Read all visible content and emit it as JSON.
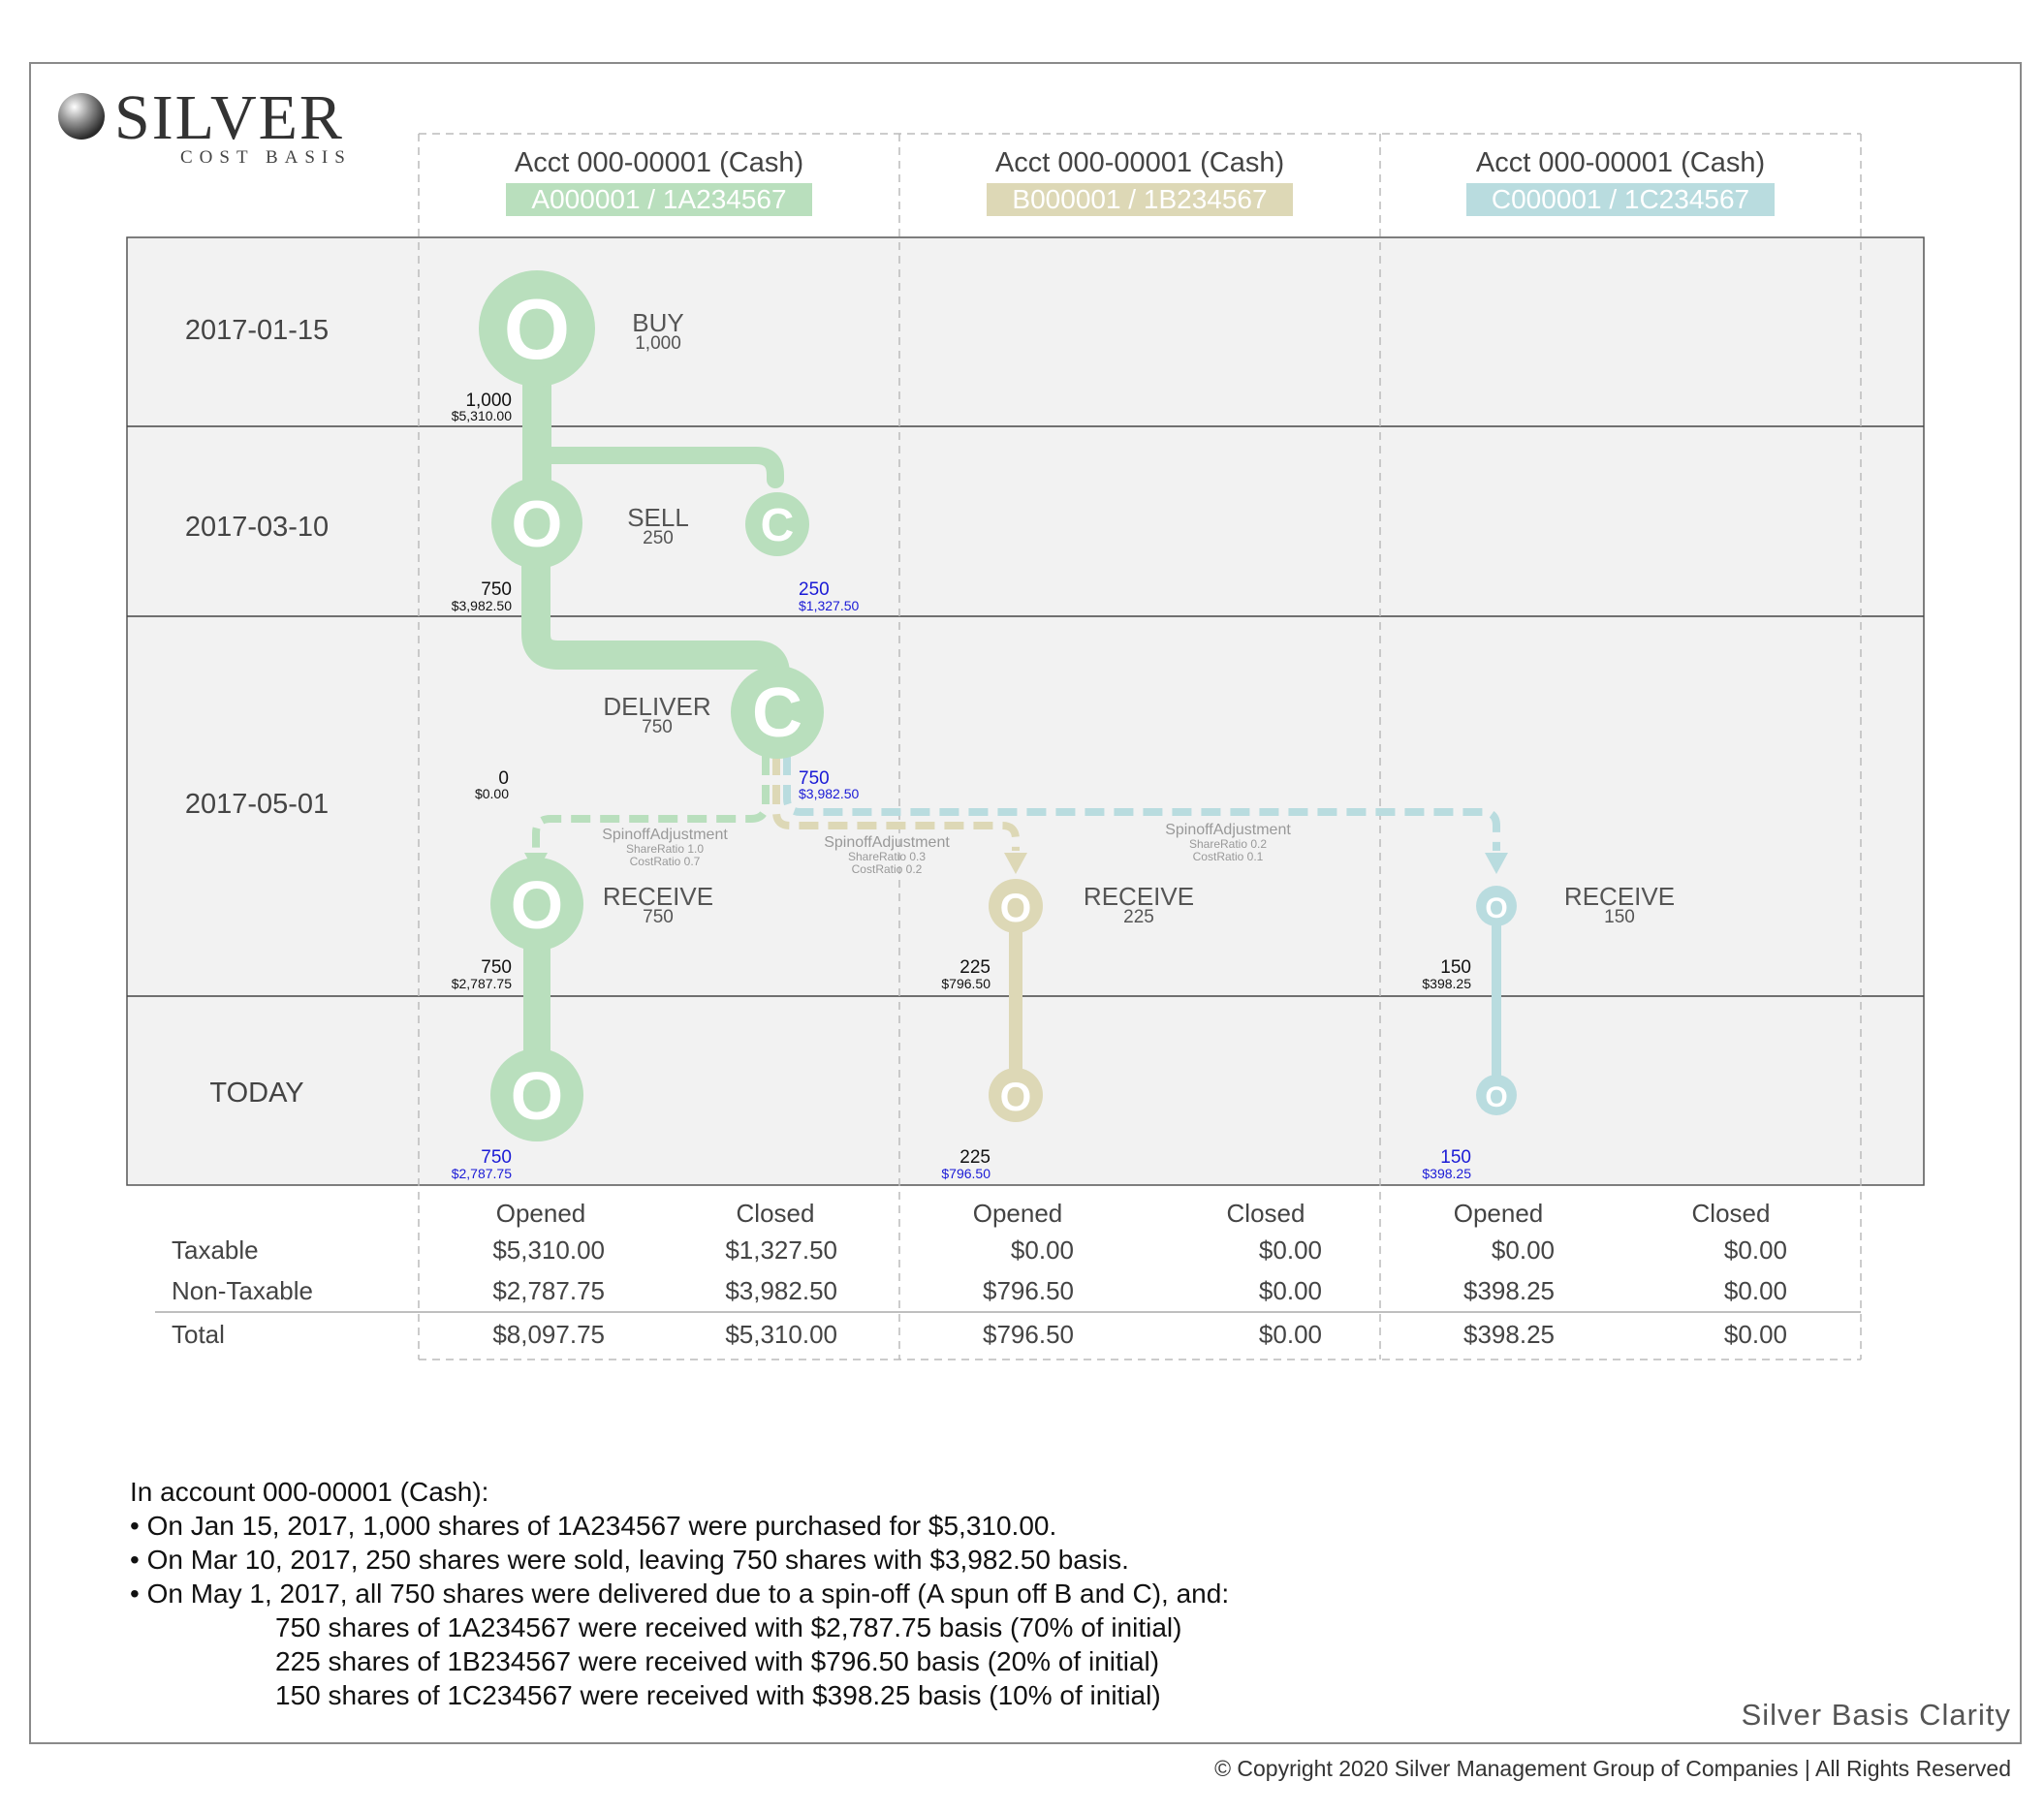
{
  "logo": {
    "name": "SILVER",
    "sub": "COST BASIS"
  },
  "accounts": [
    {
      "title": "Acct 000-00001 (Cash)",
      "security": "A000001 / 1A234567",
      "color": "#b9dfbd"
    },
    {
      "title": "Acct 000-00001 (Cash)",
      "security": "B000001 / 1B234567",
      "color": "#ddd8b6"
    },
    {
      "title": "Acct 000-00001 (Cash)",
      "security": "C000001 / 1C234567",
      "color": "#b9dcdf"
    }
  ],
  "dates": [
    "2017-01-15",
    "2017-03-10",
    "2017-05-01",
    "TODAY"
  ],
  "events": {
    "buy": {
      "action": "BUY",
      "qty": "1,000"
    },
    "sell": {
      "action": "SELL",
      "qty": "250"
    },
    "deliver": {
      "action": "DELIVER",
      "qty": "750"
    },
    "receive_a": {
      "action": "RECEIVE",
      "qty": "750"
    },
    "receive_b": {
      "action": "RECEIVE",
      "qty": "225"
    },
    "receive_c": {
      "action": "RECEIVE",
      "qty": "150"
    }
  },
  "node_letters": {
    "open": "O",
    "close": "C"
  },
  "balances": {
    "a_after_buy": {
      "qty": "1,000",
      "basis": "$5,310.00"
    },
    "a_after_sell": {
      "qty": "750",
      "basis": "$3,982.50"
    },
    "a_sold": {
      "qty": "250",
      "basis": "$1,327.50"
    },
    "a_after_deliver": {
      "qty": "0",
      "basis": "$0.00"
    },
    "a_delivered": {
      "qty": "750",
      "basis": "$3,982.50"
    },
    "a_received": {
      "qty": "750",
      "basis": "$2,787.75"
    },
    "b_received": {
      "qty": "225",
      "basis": "$796.50"
    },
    "c_received": {
      "qty": "150",
      "basis": "$398.25"
    },
    "a_today": {
      "qty": "750",
      "basis": "$2,787.75"
    },
    "b_today": {
      "qty": "225",
      "basis": "$796.50"
    },
    "c_today": {
      "qty": "150",
      "basis": "$398.25"
    }
  },
  "adjustments": [
    {
      "name": "SpinoffAdjustment",
      "share": "ShareRatio 1.0",
      "cost": "CostRatio 0.7"
    },
    {
      "name": "SpinoffAdjustment",
      "share": "ShareRatio 0.3",
      "cost": "CostRatio 0.2"
    },
    {
      "name": "SpinoffAdjustment",
      "share": "ShareRatio 0.2",
      "cost": "CostRatio 0.1"
    }
  ],
  "table": {
    "headers": [
      "Opened",
      "Closed"
    ],
    "rows": [
      {
        "label": "Taxable",
        "values": [
          "$5,310.00",
          "$1,327.50",
          "$0.00",
          "$0.00",
          "$0.00",
          "$0.00"
        ]
      },
      {
        "label": "Non-Taxable",
        "values": [
          "$2,787.75",
          "$3,982.50",
          "$796.50",
          "$0.00",
          "$398.25",
          "$0.00"
        ]
      },
      {
        "label": "Total",
        "values": [
          "$8,097.75",
          "$5,310.00",
          "$796.50",
          "$0.00",
          "$398.25",
          "$0.00"
        ]
      }
    ]
  },
  "summary": {
    "intro": "In account 000-00001 (Cash):",
    "bullets": [
      "• On Jan 15, 2017, 1,000 shares of 1A234567 were purchased for $5,310.00.",
      "• On Mar 10, 2017, 250 shares were sold, leaving 750 shares with $3,982.50 basis.",
      "• On May 1, 2017, all 750 shares were delivered due to a spin-off (A spun off B and C), and:"
    ],
    "details": [
      "750 shares of 1A234567 were received with $2,787.75 basis (70% of initial)",
      "225 shares of 1B234567 were received with $796.50 basis (20% of initial)",
      "150 shares of 1C234567 were received with $398.25 basis (10% of initial)"
    ]
  },
  "brand": "Silver Basis Clarity",
  "copyright": "© Copyright 2020 Silver Management Group of Companies | All Rights Reserved"
}
